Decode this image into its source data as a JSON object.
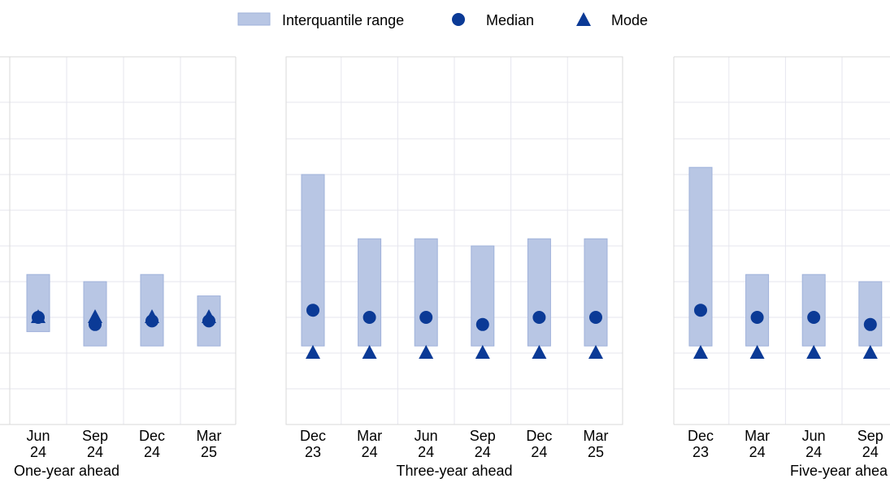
{
  "legend": {
    "items": [
      {
        "label": "Interquantile range",
        "icon": "range-swatch"
      },
      {
        "label": "Median",
        "icon": "circle-marker"
      },
      {
        "label": "Mode",
        "icon": "triangle-marker"
      }
    ]
  },
  "colors": {
    "range_fill": "#b8c6e4",
    "range_stroke": "#9fb1da",
    "marker": "#0b3a96",
    "grid": "#e6e6ee",
    "frame": "#d9d9d9"
  },
  "chart_data": [
    {
      "type": "range-dot",
      "title": "One-year ahead",
      "categories": [
        [
          "Jun",
          "24"
        ],
        [
          "Sep",
          "24"
        ],
        [
          "Dec",
          "24"
        ],
        [
          "Mar",
          "25"
        ]
      ],
      "interquantile_range": [
        [
          1.8,
          2.6
        ],
        [
          1.6,
          2.5
        ],
        [
          1.6,
          2.6
        ],
        [
          1.6,
          2.3
        ]
      ],
      "median": [
        2.0,
        1.9,
        1.95,
        1.95
      ],
      "mode": [
        2.0,
        2.0,
        2.0,
        2.0
      ],
      "ylim": [
        0.0,
        5.0
      ],
      "grid": true
    },
    {
      "type": "range-dot",
      "title": "Three-year ahead",
      "categories": [
        [
          "Dec",
          "23"
        ],
        [
          "Mar",
          "24"
        ],
        [
          "Jun",
          "24"
        ],
        [
          "Sep",
          "24"
        ],
        [
          "Dec",
          "24"
        ],
        [
          "Mar",
          "25"
        ]
      ],
      "interquantile_range": [
        [
          1.6,
          4.0
        ],
        [
          1.6,
          3.1
        ],
        [
          1.6,
          3.1
        ],
        [
          1.6,
          3.0
        ],
        [
          1.6,
          3.1
        ],
        [
          1.6,
          3.1
        ]
      ],
      "median": [
        2.1,
        2.0,
        2.0,
        1.9,
        2.0,
        2.0
      ],
      "mode": [
        1.5,
        1.5,
        1.5,
        1.5,
        1.5,
        1.5
      ],
      "ylim": [
        0.0,
        5.0
      ],
      "grid": true
    },
    {
      "type": "range-dot",
      "title": "Five-year ahea",
      "categories": [
        [
          "Dec",
          "23"
        ],
        [
          "Mar",
          "24"
        ],
        [
          "Jun",
          "24"
        ],
        [
          "Sep",
          "24"
        ]
      ],
      "interquantile_range": [
        [
          1.6,
          4.1
        ],
        [
          1.6,
          2.6
        ],
        [
          1.6,
          2.6
        ],
        [
          1.6,
          2.5
        ]
      ],
      "median": [
        2.1,
        2.0,
        2.0,
        1.9
      ],
      "mode": [
        1.5,
        1.5,
        1.5,
        1.5
      ],
      "ylim": [
        0.5,
        4.5
      ],
      "grid": true
    }
  ]
}
